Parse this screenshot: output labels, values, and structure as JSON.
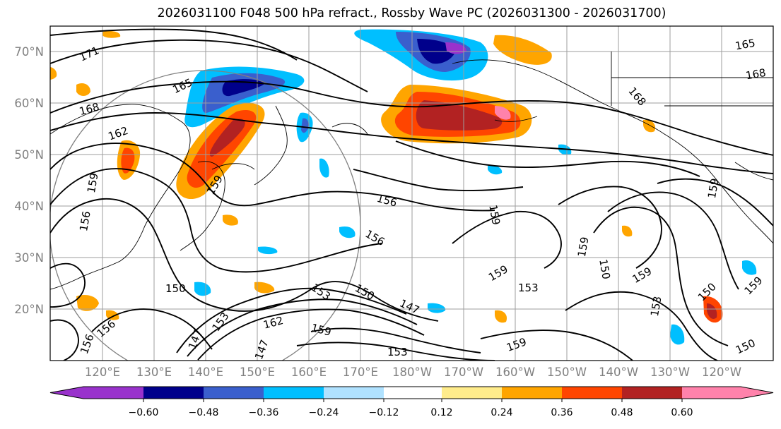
{
  "title": "2026031100 F048 500 hPa refract., Rossby Wave PC (2026031300 - 2026031700)",
  "lat_labels": [
    "70°N",
    "60°N",
    "50°N",
    "40°N",
    "30°N",
    "20°N"
  ],
  "lat_values": [
    70,
    60,
    50,
    40,
    30,
    20
  ],
  "lon_labels": [
    "120°E",
    "130°E",
    "140°E",
    "150°E",
    "160°E",
    "170°E",
    "180°W",
    "170°W",
    "160°W",
    "150°W",
    "140°W",
    "130°W",
    "120°W"
  ],
  "colorbar": {
    "tick_labels": [
      "−0.60",
      "−0.48",
      "−0.36",
      "−0.24",
      "−0.12",
      "0.12",
      "0.24",
      "0.36",
      "0.48",
      "0.60"
    ],
    "colors": [
      "#9932cc",
      "#00008b",
      "#3a5fcd",
      "#00bfff",
      "#b0e2ff",
      "#ffffff",
      "#ffec8b",
      "#ffa500",
      "#ff4500",
      "#b22222",
      "#ff82ab",
      "#ff82ab"
    ]
  },
  "contour_labels": [
    "171",
    "168",
    "165",
    "168",
    "162",
    "159",
    "159",
    "156",
    "156",
    "156",
    "159",
    "159",
    "153",
    "150",
    "159",
    "150",
    "159",
    "147",
    "150",
    "156",
    "147",
    "153",
    "162",
    "159",
    "153",
    "159",
    "150",
    "153",
    "159",
    "150",
    "159",
    "153",
    "147",
    "156",
    "165",
    "168"
  ]
}
